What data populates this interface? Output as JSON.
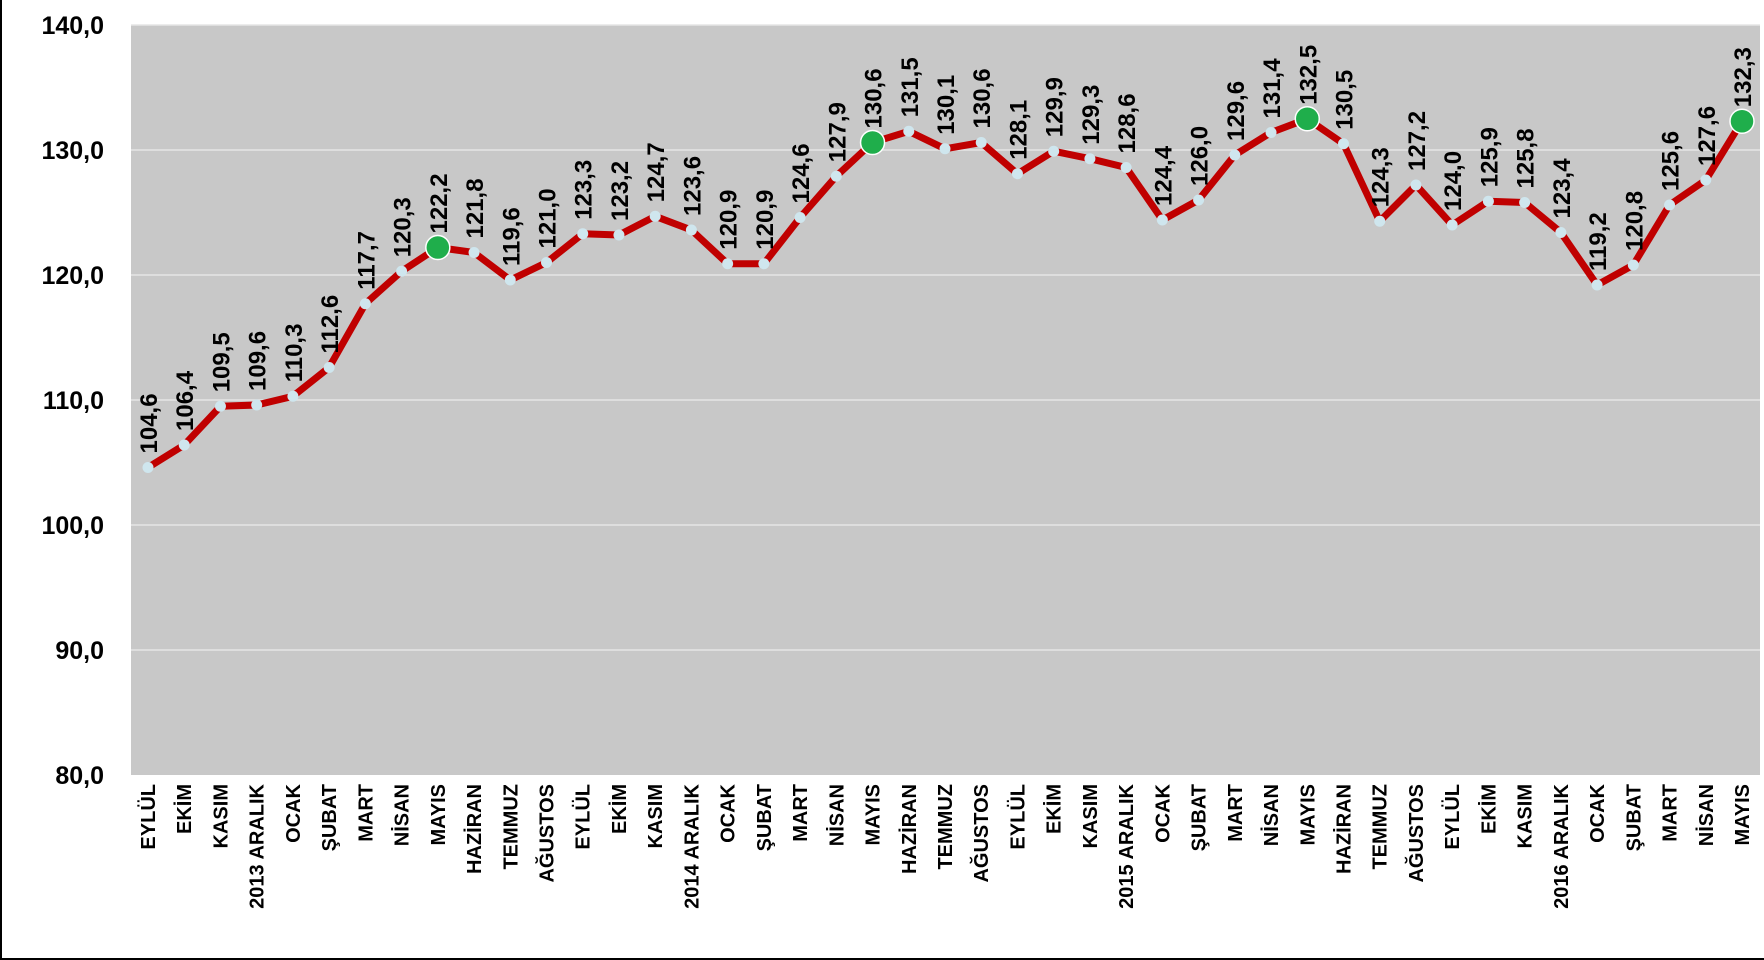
{
  "chart_data": {
    "type": "line",
    "title": "",
    "xlabel": "",
    "ylabel": "",
    "ylim": [
      80,
      140
    ],
    "y_ticks": [
      "80,0",
      "90,0",
      "100,0",
      "110,0",
      "120,0",
      "130,0",
      "140,0"
    ],
    "grid": true,
    "categories": [
      "EYLÜL",
      "EKİM",
      "KASIM",
      "2013 ARALIK",
      "OCAK",
      "ŞUBAT",
      "MART",
      "NİSAN",
      "MAYIS",
      "HAZİRAN",
      "TEMMUZ",
      "AĞUSTOS",
      "EYLÜL",
      "EKİM",
      "KASIM",
      "2014 ARALIK",
      "OCAK",
      "ŞUBAT",
      "MART",
      "NİSAN",
      "MAYIS",
      "HAZİRAN",
      "TEMMUZ",
      "AĞUSTOS",
      "EYLÜL",
      "EKİM",
      "KASIM",
      "2015 ARALIK",
      "OCAK",
      "ŞUBAT",
      "MART",
      "NİSAN",
      "MAYIS",
      "HAZİRAN",
      "TEMMUZ",
      "AĞUSTOS",
      "EYLÜL",
      "EKİM",
      "KASIM",
      "2016 ARALIK",
      "OCAK",
      "ŞUBAT",
      "MART",
      "NİSAN",
      "MAYIS"
    ],
    "values": [
      104.6,
      106.4,
      109.5,
      109.6,
      110.3,
      112.6,
      117.7,
      120.3,
      122.2,
      121.8,
      119.6,
      121.0,
      123.3,
      123.2,
      124.7,
      123.6,
      120.9,
      120.9,
      124.6,
      127.9,
      130.6,
      131.5,
      130.1,
      130.6,
      128.1,
      129.9,
      129.3,
      128.6,
      124.4,
      126.0,
      129.6,
      131.4,
      132.5,
      130.5,
      124.3,
      127.2,
      124.0,
      125.9,
      125.8,
      123.4,
      119.2,
      120.8,
      125.6,
      127.6,
      132.3
    ],
    "value_labels": [
      "104,6",
      "106,4",
      "109,5",
      "109,6",
      "110,3",
      "112,6",
      "117,7",
      "120,3",
      "122,2",
      "121,8",
      "119,6",
      "121,0",
      "123,3",
      "123,2",
      "124,7",
      "123,6",
      "120,9",
      "120,9",
      "124,6",
      "127,9",
      "130,6",
      "131,5",
      "130,1",
      "130,6",
      "128,1",
      "129,9",
      "129,3",
      "128,6",
      "124,4",
      "126,0",
      "129,6",
      "131,4",
      "132,5",
      "130,5",
      "124,3",
      "127,2",
      "124,0",
      "125,9",
      "125,8",
      "123,4",
      "119,2",
      "120,8",
      "125,6",
      "127,6",
      "132,3"
    ],
    "highlighted_points": [
      8,
      20,
      32,
      44
    ],
    "colors": {
      "plot_background": "#c8c8c8",
      "gridline": "#e6e6e6",
      "line": "#c00000",
      "marker": "#cfe6ee",
      "highlight_marker": "#1fae4b",
      "text": "#000000"
    }
  }
}
